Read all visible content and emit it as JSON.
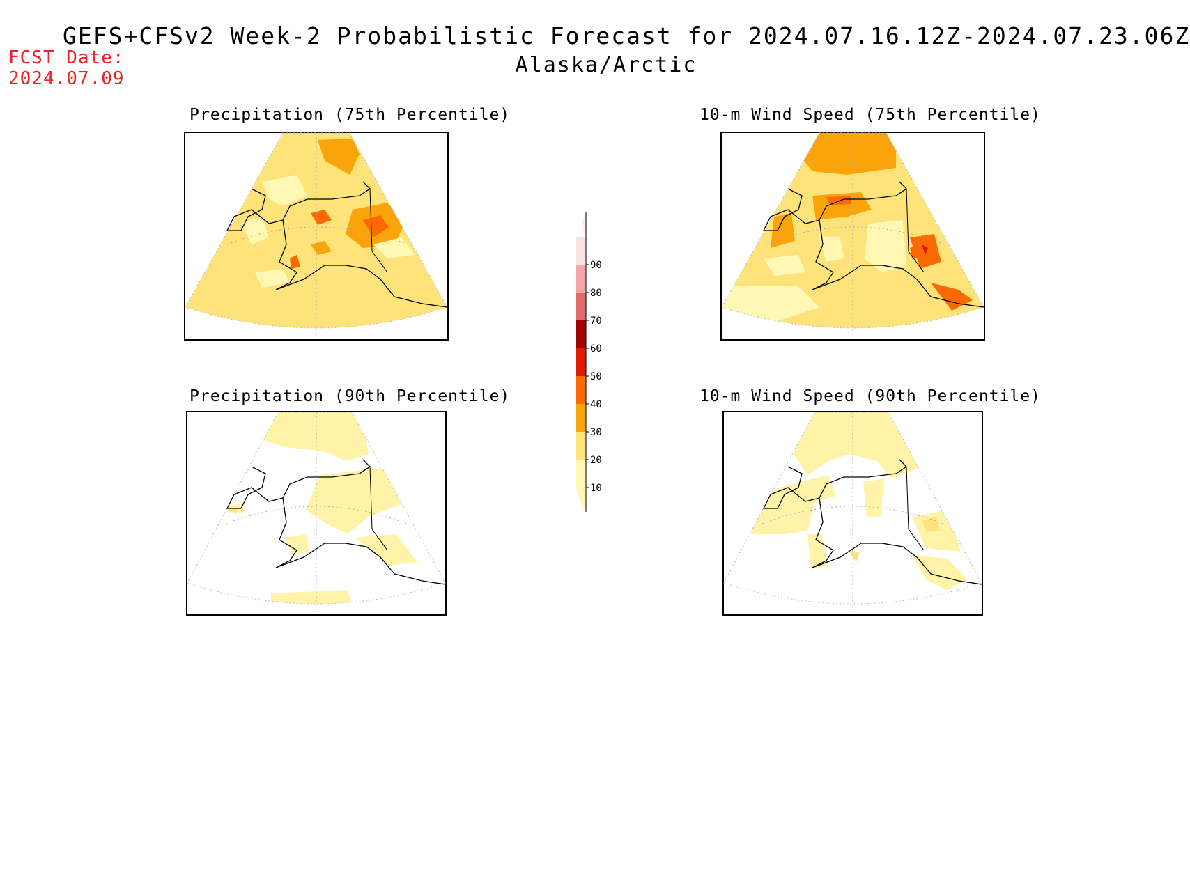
{
  "header": {
    "title": "GEFS+CFSv2 Week-2 Probabilistic Forecast for 2024.07.16.12Z-2024.07.23.06Z",
    "region": "Alaska/Arctic",
    "fcst_label": "FCST Date:",
    "fcst_date": "2024.07.09"
  },
  "panels": [
    {
      "title": "Precipitation (75th Percentile)"
    },
    {
      "title": "10-m Wind Speed (75th Percentile)"
    },
    {
      "title": "Precipitation (90th Percentile)"
    },
    {
      "title": "10-m Wind Speed (90th Percentile)"
    }
  ],
  "colorbar": {
    "levels": [
      "10",
      "20",
      "30",
      "40",
      "50",
      "60",
      "70",
      "80",
      "90"
    ],
    "colors": [
      "#fff8b4",
      "#fde37a",
      "#fba30a",
      "#fb6a02",
      "#e01a01",
      "#a00101",
      "#dd6b6b",
      "#f4a7a7",
      "#fde2e2"
    ]
  },
  "colors": {
    "c10": "#fff8b4",
    "c20": "#fde37a",
    "c30": "#fba30a",
    "c40": "#fb6a02",
    "c50": "#e01a01",
    "fcst_text": "#ee2222"
  }
}
